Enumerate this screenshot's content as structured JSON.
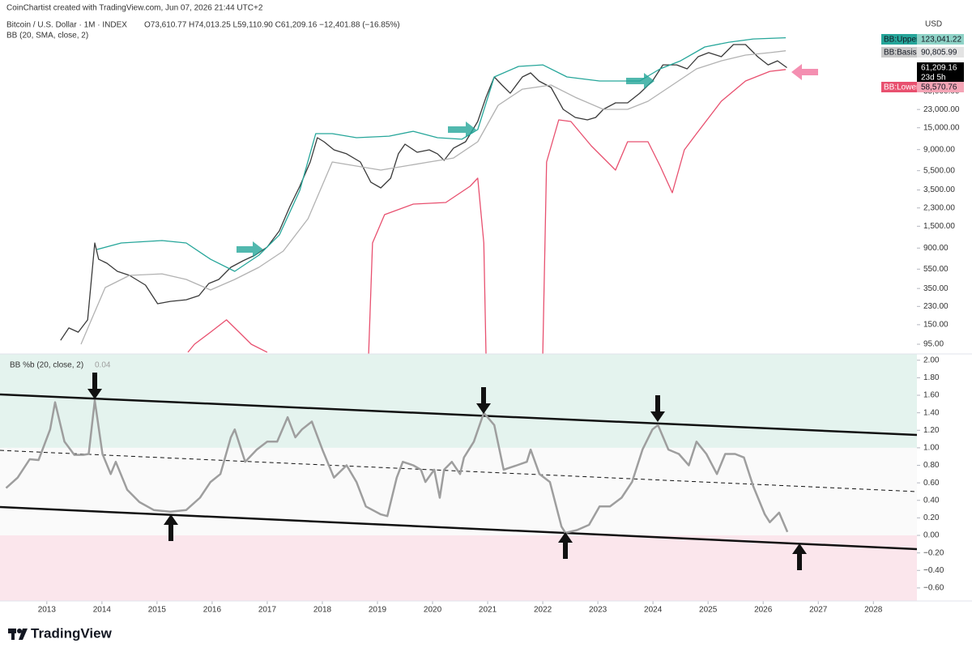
{
  "header": {
    "credit": "CoinChartist created with TradingView.com, Jun 07, 2026 21:44 UTC+2",
    "symbol": "Bitcoin / U.S. Dollar · 1M · INDEX",
    "ohlc": "O73,610.77 H74,013.25 L59,110.90 C61,209.16 −12,401.88 (−16.85%)",
    "study": "BB (20, SMA, close, 2)",
    "currency": "USD"
  },
  "price_tags": {
    "upper_name": "BB:Upper",
    "upper_value": "123,041.22",
    "basis_name": "BB:Basis",
    "basis_value": "90,805.99",
    "close_value": "61,209.16",
    "countdown": "23d 5h",
    "lower_name": "BB:Lower",
    "lower_value": "58,570.76"
  },
  "footer": {
    "brand": "TradingView"
  },
  "chart_data": [
    {
      "type": "line",
      "title": "Bitcoin / U.S. Dollar · 1M · INDEX",
      "log_scale": true,
      "xlim": [
        2012.15,
        2028.79
      ],
      "ylim": [
        75.7,
        203700
      ],
      "yticks": [
        {
          "value": 95,
          "label": "95.00"
        },
        {
          "value": 150,
          "label": "150.00"
        },
        {
          "value": 230,
          "label": "230.00"
        },
        {
          "value": 350,
          "label": "350.00"
        },
        {
          "value": 550,
          "label": "550.00"
        },
        {
          "value": 900,
          "label": "900.00"
        },
        {
          "value": 1500,
          "label": "1,500.00"
        },
        {
          "value": 2300,
          "label": "2,300.00"
        },
        {
          "value": 3500,
          "label": "3,500.00"
        },
        {
          "value": 5500,
          "label": "5,500.00"
        },
        {
          "value": 9000,
          "label": "9,000.00"
        },
        {
          "value": 15000,
          "label": "15,000.00"
        },
        {
          "value": 23000,
          "label": "23,000.00"
        },
        {
          "value": 35000,
          "label": "35,000.00"
        }
      ],
      "series": [
        {
          "color": "#3a3a3a",
          "x": [
            2013.25,
            2013.4,
            2013.57,
            2013.74,
            2013.87,
            2013.94,
            2014.09,
            2014.28,
            2014.5,
            2014.79,
            2015.01,
            2015.24,
            2015.53,
            2015.76,
            2015.94,
            2016.12,
            2016.34,
            2016.56,
            2016.78,
            2017.0,
            2017.22,
            2017.41,
            2017.59,
            2017.78,
            2017.91,
            2018.03,
            2018.21,
            2018.44,
            2018.69,
            2018.88,
            2019.06,
            2019.24,
            2019.38,
            2019.5,
            2019.72,
            2019.94,
            2020.09,
            2020.21,
            2020.38,
            2020.6,
            2020.82,
            2020.97,
            2021.12,
            2021.26,
            2021.41,
            2021.63,
            2021.78,
            2021.93,
            2022.15,
            2022.37,
            2022.59,
            2022.81,
            2022.96,
            2023.1,
            2023.32,
            2023.54,
            2023.76,
            2023.99,
            2024.18,
            2024.43,
            2024.62,
            2024.82,
            2025.01,
            2025.24,
            2025.46,
            2025.68,
            2025.9,
            2026.09,
            2026.26,
            2026.43
          ],
          "values": [
            104,
            139,
            126,
            168,
            1014,
            693,
            631,
            522,
            475,
            379,
            245,
            259,
            269,
            296,
            393,
            432,
            574,
            668,
            763,
            922,
            1346,
            2375,
            3817,
            6734,
            11890,
            10810,
            8950,
            8150,
            6734,
            4200,
            3675,
            4610,
            8150,
            10210,
            8450,
            8950,
            8150,
            7000,
            9310,
            10810,
            17380,
            30620,
            49200,
            40740,
            33650,
            49200,
            54080,
            44770,
            38460,
            23070,
            19100,
            18030,
            19100,
            23070,
            26850,
            26850,
            33650,
            44770,
            65310,
            65310,
            59430,
            79070,
            86900,
            79070,
            105000,
            105000,
            79070,
            65310,
            71780,
            61209.16
          ]
        },
        {
          "name": "BB:Upper",
          "color": "#26a69a",
          "x": [
            2013.91,
            2014.35,
            2015.09,
            2015.53,
            2015.97,
            2016.41,
            2016.85,
            2017.22,
            2017.59,
            2017.88,
            2018.18,
            2018.62,
            2019.21,
            2019.65,
            2020.09,
            2020.53,
            2020.82,
            2021.12,
            2021.56,
            2022.0,
            2022.44,
            2023.03,
            2023.76,
            2024.13,
            2024.5,
            2024.94,
            2025.38,
            2025.82,
            2026.41
          ],
          "values": [
            871,
            1014,
            1074,
            1014,
            693,
            522,
            763,
            1224,
            3467,
            13060,
            13060,
            11890,
            12330,
            13800,
            11890,
            11460,
            14360,
            49200,
            62950,
            65310,
            49200,
            44770,
            44770,
            59430,
            71780,
            99100,
            110900,
            119700,
            123041.22
          ]
        },
        {
          "name": "BB:Basis",
          "color": "#b2b2b2",
          "x": [
            2013.62,
            2013.84,
            2014.06,
            2014.5,
            2015.09,
            2015.53,
            2015.97,
            2016.41,
            2016.85,
            2017.29,
            2017.74,
            2018.18,
            2018.62,
            2019.06,
            2019.5,
            2019.94,
            2020.38,
            2020.82,
            2021.19,
            2021.63,
            2022.15,
            2022.59,
            2023.1,
            2023.54,
            2023.91,
            2024.35,
            2024.79,
            2025.24,
            2025.68,
            2026.12,
            2026.41
          ],
          "values": [
            95,
            185,
            358,
            475,
            493,
            432,
            338,
            432,
            574,
            839,
            1791,
            6734,
            6124,
            5572,
            6124,
            6734,
            7396,
            10810,
            25350,
            36980,
            40740,
            30620,
            23070,
            23070,
            27860,
            40740,
            59430,
            71780,
            82030,
            86900,
            90805.99
          ]
        },
        {
          "name": "BB:Lower",
          "color": "#e8506f",
          "x": [
            2015.56,
            2015.68,
            2015.97,
            2016.26,
            2016.49,
            2016.71,
            2017.0,
            null,
            2018.84,
            2018.91,
            2019.13,
            2019.65,
            2020.24,
            2020.68,
            2020.82,
            2020.93,
            2020.97,
            null,
            2022.0,
            2022.07,
            2022.29,
            2022.51,
            2022.88,
            2023.32,
            2023.54,
            2023.91,
            2024.13,
            2024.35,
            2024.57,
            2024.79,
            2025.24,
            2025.68,
            2026.12,
            2026.41
          ],
          "values": [
            78.7,
            95,
            126,
            168,
            126,
            95,
            78.7,
            null,
            75.7,
            1014,
            1968,
            2518,
            2612,
            3817,
            4610,
            1014,
            75.7,
            null,
            75.7,
            6734,
            18030,
            17380,
            9840,
            5572,
            10810,
            10810,
            6124,
            3281,
            8950,
            13060,
            27860,
            44770,
            56100,
            58570.76
          ]
        }
      ]
    },
    {
      "type": "line",
      "title": "BB %b (20, close, 2)",
      "last_value": "0.04",
      "xlim": [
        2012.15,
        2028.79
      ],
      "ylim": [
        -0.749,
        2.072
      ],
      "xticks": [
        2013,
        2014,
        2015,
        2016,
        2017,
        2018,
        2019,
        2020,
        2021,
        2022,
        2023,
        2024,
        2025,
        2026,
        2027,
        2028
      ],
      "yticks": [
        {
          "value": 2,
          "label": "2.00"
        },
        {
          "value": 1.8,
          "label": "1.80"
        },
        {
          "value": 1.6,
          "label": "1.60"
        },
        {
          "value": 1.4,
          "label": "1.40"
        },
        {
          "value": 1.2,
          "label": "1.20"
        },
        {
          "value": 1,
          "label": "1.00"
        },
        {
          "value": 0.8,
          "label": "0.80"
        },
        {
          "value": 0.6,
          "label": "0.60"
        },
        {
          "value": 0.4,
          "label": "0.40"
        },
        {
          "value": 0.2,
          "label": "0.20"
        },
        {
          "value": 0,
          "label": "0.00"
        },
        {
          "value": -0.2,
          "label": "−0.20"
        },
        {
          "value": -0.4,
          "label": "−0.40"
        },
        {
          "value": -0.6,
          "label": "−0.60"
        }
      ],
      "upper_zone": {
        "from": 1,
        "color": "#e4f3ee"
      },
      "middle_zone": {
        "from": 0,
        "color": "#fafafa"
      },
      "lower_zone": {
        "to": 0,
        "color": "#fbe6ec"
      },
      "trendlines": [
        {
          "x": [
            2012.15,
            2028.79
          ],
          "values": [
            1.61,
            1.147
          ],
          "dashed": false
        },
        {
          "x": [
            2012.15,
            2028.79
          ],
          "values": [
            0.971,
            0.5
          ],
          "dashed": true
        },
        {
          "x": [
            2012.15,
            2028.79
          ],
          "values": [
            0.324,
            -0.157
          ],
          "dashed": false
        }
      ],
      "series": [
        {
          "color": "#9e9e9e",
          "x": [
            2012.26,
            2012.47,
            2012.69,
            2012.85,
            2013.06,
            2013.15,
            2013.32,
            2013.5,
            2013.66,
            2013.76,
            2013.87,
            2014.01,
            2014.16,
            2014.25,
            2014.46,
            2014.68,
            2014.94,
            2015.24,
            2015.53,
            2015.78,
            2015.97,
            2016.15,
            2016.34,
            2016.41,
            2016.6,
            2016.81,
            2017.0,
            2017.18,
            2017.37,
            2017.51,
            2017.63,
            2017.81,
            2018.0,
            2018.21,
            2018.44,
            2018.62,
            2018.79,
            2019.06,
            2019.18,
            2019.35,
            2019.46,
            2019.65,
            2019.79,
            2019.87,
            2020.03,
            2020.13,
            2020.21,
            2020.35,
            2020.5,
            2020.57,
            2020.75,
            2020.93,
            2021.12,
            2021.29,
            2021.53,
            2021.71,
            2021.78,
            2021.94,
            2022.13,
            2022.34,
            2022.41,
            2022.62,
            2022.84,
            2023.03,
            2023.22,
            2023.43,
            2023.62,
            2023.81,
            2023.99,
            2024.09,
            2024.28,
            2024.47,
            2024.65,
            2024.79,
            2024.97,
            2025.16,
            2025.31,
            2025.49,
            2025.65,
            2025.82,
            2026.03,
            2026.12,
            2026.29,
            2026.44
          ],
          "values": [
            0.54,
            0.66,
            0.87,
            0.86,
            1.21,
            1.52,
            1.07,
            0.92,
            0.92,
            0.93,
            1.54,
            0.93,
            0.7,
            0.84,
            0.52,
            0.38,
            0.29,
            0.27,
            0.29,
            0.43,
            0.61,
            0.7,
            1.12,
            1.21,
            0.84,
            0.98,
            1.07,
            1.07,
            1.35,
            1.12,
            1.21,
            1.3,
            0.98,
            0.66,
            0.8,
            0.61,
            0.33,
            0.24,
            0.22,
            0.66,
            0.84,
            0.8,
            0.75,
            0.61,
            0.75,
            0.43,
            0.75,
            0.84,
            0.7,
            0.89,
            1.07,
            1.4,
            1.26,
            0.75,
            0.8,
            0.84,
            0.98,
            0.7,
            0.61,
            0.1,
            0.03,
            0.06,
            0.12,
            0.33,
            0.33,
            0.43,
            0.61,
            0.98,
            1.21,
            1.26,
            0.98,
            0.93,
            0.8,
            1.07,
            0.93,
            0.7,
            0.93,
            0.93,
            0.89,
            0.56,
            0.24,
            0.15,
            0.26,
            0.04
          ]
        }
      ]
    }
  ]
}
